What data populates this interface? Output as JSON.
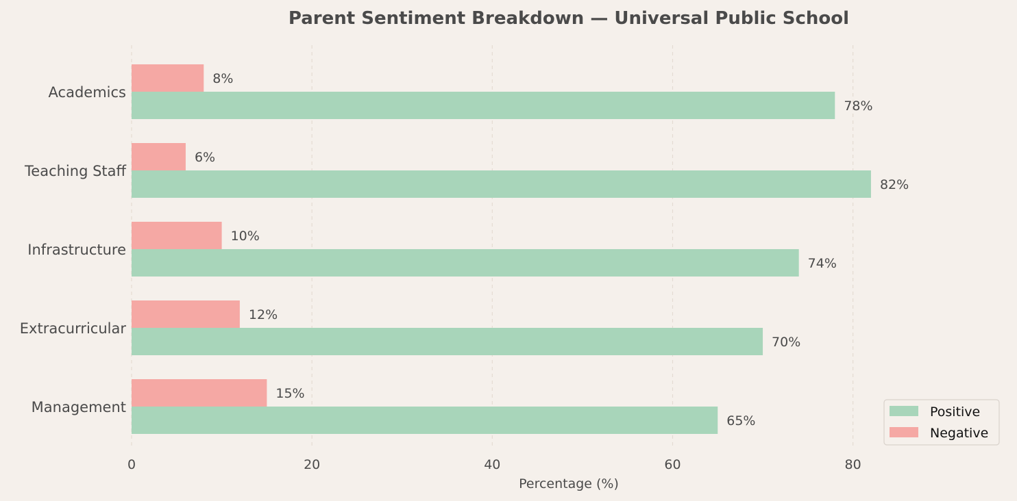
{
  "chart_data": {
    "type": "bar",
    "orientation": "horizontal",
    "title": "Parent Sentiment Breakdown — Universal Public School",
    "xlabel": "Percentage (%)",
    "ylabel": "",
    "categories": [
      "Academics",
      "Teaching Staff",
      "Infrastructure",
      "Extracurricular",
      "Management"
    ],
    "series": [
      {
        "name": "Positive",
        "values": [
          78,
          82,
          74,
          70,
          65
        ],
        "color": "#a8d5ba"
      },
      {
        "name": "Negative",
        "values": [
          8,
          6,
          10,
          12,
          15
        ],
        "color": "#f5a8a4"
      }
    ],
    "xlim": [
      0,
      95
    ],
    "xticks": [
      0,
      20,
      40,
      60,
      80
    ],
    "value_suffix": "%",
    "grid": "vertical dashed",
    "legend_position": "lower-right"
  }
}
